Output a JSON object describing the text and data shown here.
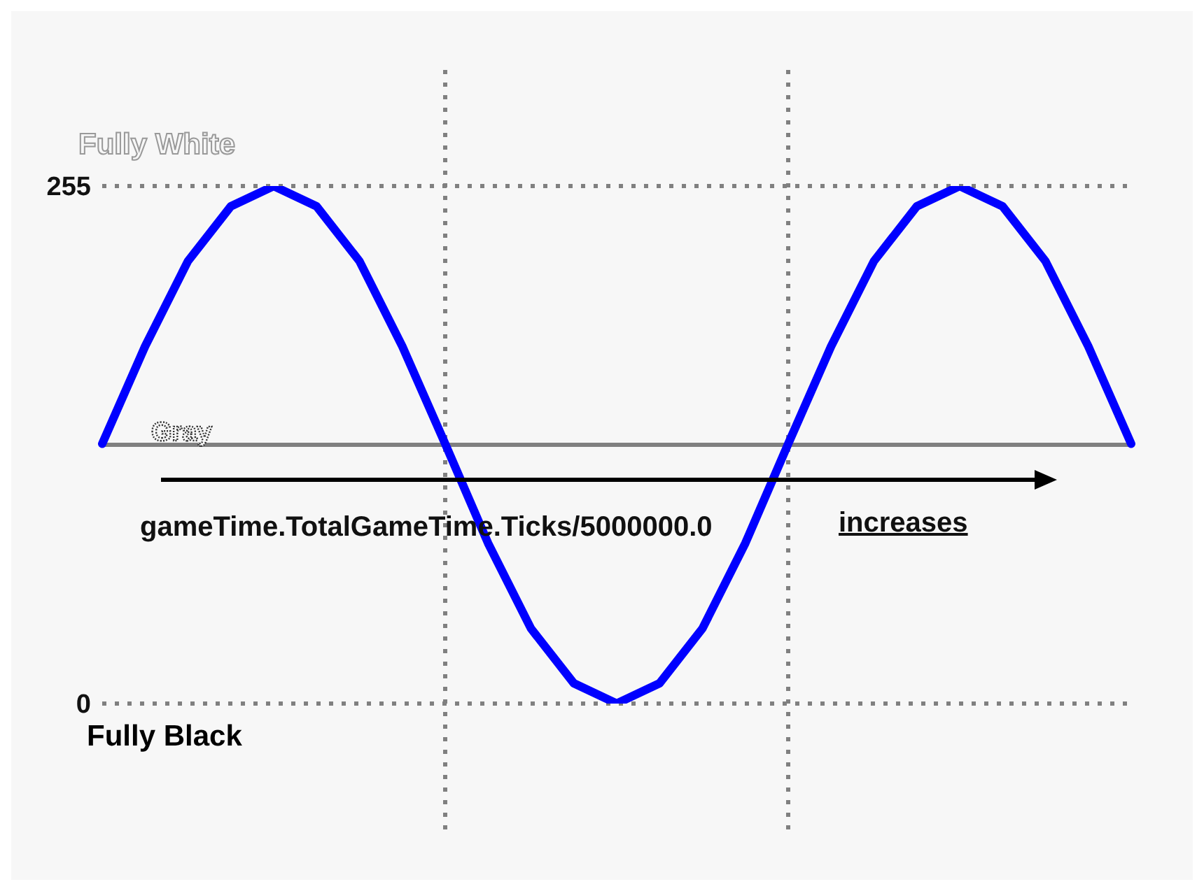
{
  "chart_data": {
    "type": "line",
    "categories": [
      null,
      null,
      null,
      null,
      null,
      null,
      null,
      null,
      null,
      null,
      null,
      null,
      null,
      null,
      null,
      null,
      null,
      null,
      null,
      null,
      null,
      null,
      null,
      null,
      null
    ],
    "series": [
      {
        "color": "#0000ff",
        "values": [
          128,
          176,
          218,
          245,
          255,
          245,
          218,
          176,
          128,
          79,
          37,
          10,
          0,
          10,
          37,
          79,
          128,
          176,
          218,
          245,
          255,
          245,
          218,
          176,
          128
        ]
      }
    ],
    "ylim": [
      0,
      255
    ],
    "yticks": [
      0,
      255
    ],
    "tick_labels": "y",
    "grid": "y",
    "legend": false,
    "marker": "none",
    "line_style": "solid",
    "ref_lines": [
      {
        "axis": "y",
        "value": 127.5,
        "label": "Gray",
        "color": "#808080",
        "line_style": "solid"
      }
    ],
    "annotations": [
      "Fully White",
      "Fully Black",
      "gameTime.TotalGameTime.Ticks/5000000.0",
      "increases"
    ]
  }
}
